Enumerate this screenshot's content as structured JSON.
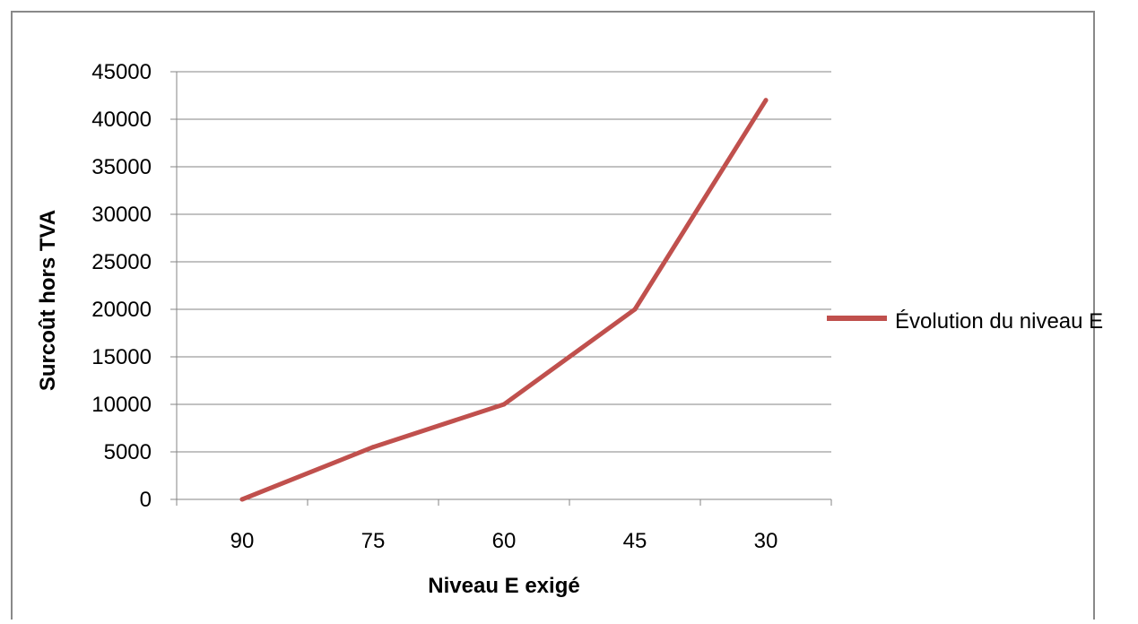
{
  "chart_data": {
    "type": "line",
    "title": "",
    "xlabel": "Niveau E exigé",
    "ylabel": "Surcoût hors TVA",
    "categories": [
      "90",
      "75",
      "60",
      "45",
      "30"
    ],
    "series": [
      {
        "name": "Évolution du niveau E",
        "values": [
          0,
          5500,
          10000,
          20000,
          42000
        ],
        "color": "#c0504d"
      }
    ],
    "ylim": [
      0,
      45000
    ],
    "yticks": [
      0,
      5000,
      10000,
      15000,
      20000,
      25000,
      30000,
      35000,
      40000,
      45000
    ],
    "grid": true,
    "legend_position": "right"
  }
}
